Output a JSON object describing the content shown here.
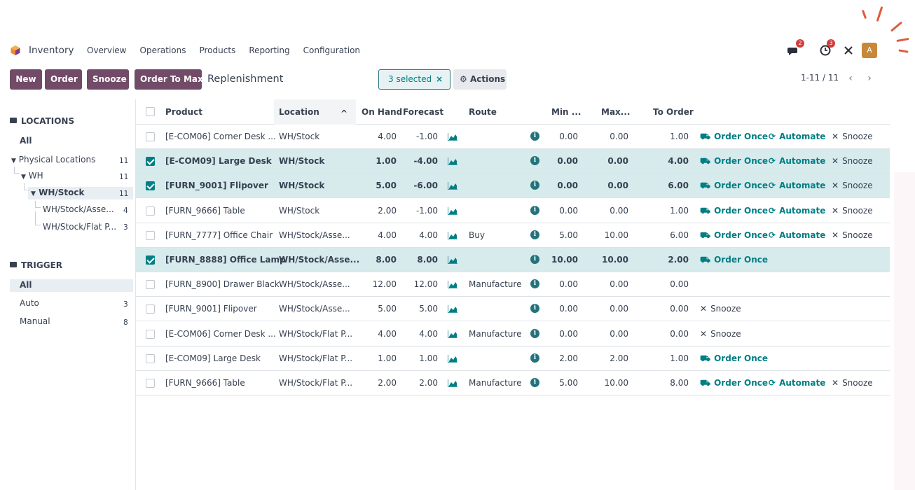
{
  "app": {
    "name": "Inventory",
    "menu": [
      "Overview",
      "Operations",
      "Products",
      "Reporting",
      "Configuration"
    ],
    "messages_badge": "2",
    "activities_badge": "3",
    "avatar_letter": "A",
    "brand_color": "#714b67",
    "accent_color": "#017e84"
  },
  "control": {
    "buttons": [
      "New",
      "Order",
      "Snooze",
      "Order To Max"
    ],
    "breadcrumb": "Replenishment",
    "selected_label": "3 selected",
    "clear_symbol": "×",
    "actions_label": "Actions",
    "pager": "1-11 / 11",
    "prev_symbol": "‹",
    "next_symbol": "›"
  },
  "sidebar": {
    "locations_title": "LOCATIONS",
    "locations_all": "All",
    "physical_label": "Physical Locations",
    "physical_count": "11",
    "wh_label": "WH",
    "wh_count": "11",
    "wh_stock_label": "WH/Stock",
    "wh_stock_count": "11",
    "assembly_label": "WH/Stock/Asse...",
    "assembly_count": "4",
    "flat_label": "WH/Stock/Flat P...",
    "flat_count": "3",
    "trigger_title": "TRIGGER",
    "trigger_all": "All",
    "auto_label": "Auto",
    "auto_count": "3",
    "manual_label": "Manual",
    "manual_count": "8"
  },
  "table": {
    "headers": {
      "product": "Product",
      "location": "Location",
      "sort_symbol": "^",
      "on_hand": "On Hand",
      "forecast": "Forecast",
      "route": "Route",
      "min": "Min ...",
      "max": "Max...",
      "to_order": "To Order"
    },
    "labels": {
      "order_once": "Order Once",
      "automate": "Automate",
      "snooze": "Snooze"
    },
    "rows": [
      {
        "product": "[E-COM06] Corner Desk ...",
        "location": "WH/Stock",
        "on_hand": "4.00",
        "forecast": "-1.00",
        "route": "",
        "min": "0.00",
        "max": "0.00",
        "to_order": "1.00",
        "selected": false,
        "order_once": true,
        "automate": true,
        "snooze": true
      },
      {
        "product": "[E-COM09] Large Desk",
        "location": "WH/Stock",
        "on_hand": "1.00",
        "forecast": "-4.00",
        "route": "",
        "min": "0.00",
        "max": "0.00",
        "to_order": "4.00",
        "selected": true,
        "order_once": true,
        "automate": true,
        "snooze": true
      },
      {
        "product": "[FURN_9001] Flipover",
        "location": "WH/Stock",
        "on_hand": "5.00",
        "forecast": "-6.00",
        "route": "",
        "min": "0.00",
        "max": "0.00",
        "to_order": "6.00",
        "selected": true,
        "order_once": true,
        "automate": true,
        "snooze": true
      },
      {
        "product": "[FURN_9666] Table",
        "location": "WH/Stock",
        "on_hand": "2.00",
        "forecast": "-1.00",
        "route": "",
        "min": "0.00",
        "max": "0.00",
        "to_order": "1.00",
        "selected": false,
        "order_once": true,
        "automate": true,
        "snooze": true
      },
      {
        "product": "[FURN_7777] Office Chair",
        "location": "WH/Stock/Asse...",
        "on_hand": "4.00",
        "forecast": "4.00",
        "route": "Buy",
        "min": "5.00",
        "max": "10.00",
        "to_order": "6.00",
        "selected": false,
        "order_once": true,
        "automate": true,
        "snooze": true
      },
      {
        "product": "[FURN_8888] Office Lamp",
        "location": "WH/Stock/Asse...",
        "on_hand": "8.00",
        "forecast": "8.00",
        "route": "",
        "min": "10.00",
        "max": "10.00",
        "to_order": "2.00",
        "selected": true,
        "order_once": true,
        "automate": false,
        "snooze": false
      },
      {
        "product": "[FURN_8900] Drawer Black",
        "location": "WH/Stock/Asse...",
        "on_hand": "12.00",
        "forecast": "12.00",
        "route": "Manufacture",
        "min": "0.00",
        "max": "0.00",
        "to_order": "0.00",
        "selected": false,
        "order_once": false,
        "automate": false,
        "snooze": false
      },
      {
        "product": "[FURN_9001] Flipover",
        "location": "WH/Stock/Asse...",
        "on_hand": "5.00",
        "forecast": "5.00",
        "route": "",
        "min": "0.00",
        "max": "0.00",
        "to_order": "0.00",
        "selected": false,
        "order_once": false,
        "automate": false,
        "snooze": true
      },
      {
        "product": "[E-COM06] Corner Desk ...",
        "location": "WH/Stock/Flat P...",
        "on_hand": "4.00",
        "forecast": "4.00",
        "route": "Manufacture",
        "min": "0.00",
        "max": "0.00",
        "to_order": "0.00",
        "selected": false,
        "order_once": false,
        "automate": false,
        "snooze": true
      },
      {
        "product": "[E-COM09] Large Desk",
        "location": "WH/Stock/Flat P...",
        "on_hand": "1.00",
        "forecast": "1.00",
        "route": "",
        "min": "2.00",
        "max": "2.00",
        "to_order": "1.00",
        "selected": false,
        "order_once": true,
        "automate": false,
        "snooze": false
      },
      {
        "product": "[FURN_9666] Table",
        "location": "WH/Stock/Flat P...",
        "on_hand": "2.00",
        "forecast": "2.00",
        "route": "Manufacture",
        "min": "5.00",
        "max": "10.00",
        "to_order": "8.00",
        "selected": false,
        "order_once": true,
        "automate": true,
        "snooze": true
      }
    ]
  }
}
